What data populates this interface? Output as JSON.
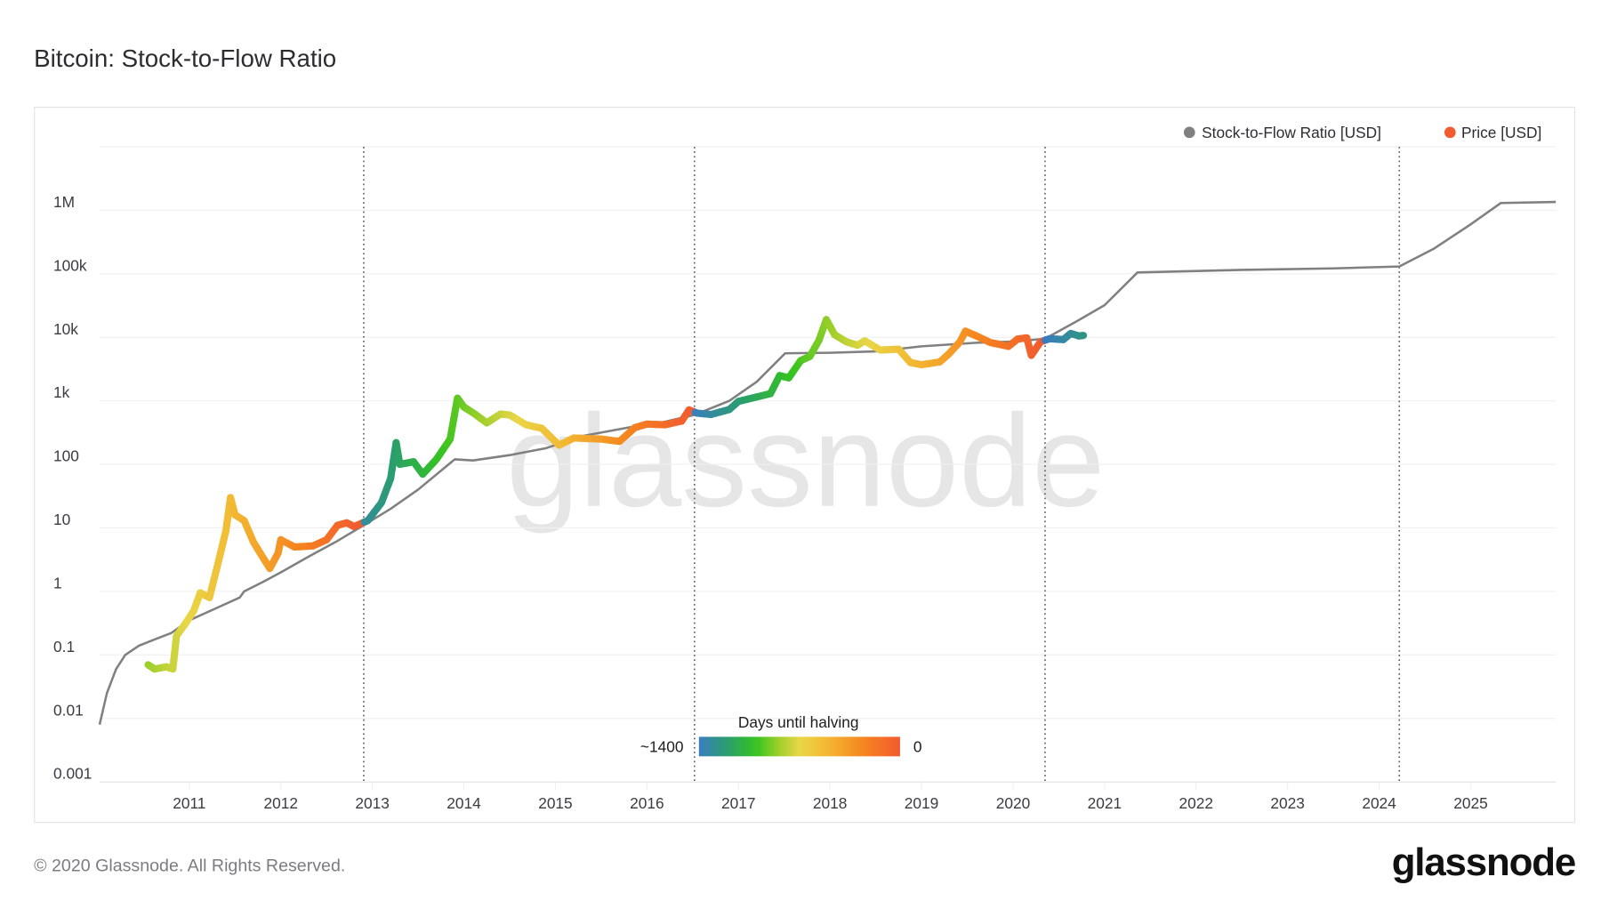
{
  "title": "Bitcoin: Stock-to-Flow Ratio",
  "footer": {
    "copyright": "© 2020 Glassnode. All Rights Reserved.",
    "logo": "glassnode"
  },
  "watermark": "glassnode",
  "colorbar": {
    "title": "Days until halving",
    "min_label": "~1400",
    "max_label": "0",
    "stops": [
      [
        0,
        "#f25a30"
      ],
      [
        250,
        "#f5841f"
      ],
      [
        500,
        "#f3b632"
      ],
      [
        700,
        "#e9d647"
      ],
      [
        850,
        "#9bcf2a"
      ],
      [
        1000,
        "#35c41e"
      ],
      [
        1200,
        "#2a9e6e"
      ],
      [
        1400,
        "#3a7dbf"
      ]
    ]
  },
  "chart_data": {
    "type": "line",
    "title": "Bitcoin: Stock-to-Flow Ratio",
    "xlabel": "",
    "ylabel": "",
    "yscale": "log",
    "ylim": [
      0.001,
      10000000
    ],
    "xlim": [
      2010.02,
      2025.93
    ],
    "grid": true,
    "legend_position": "top-right",
    "y_ticks": [
      {
        "v": 1000000,
        "label": "1M"
      },
      {
        "v": 100000,
        "label": "100k"
      },
      {
        "v": 10000,
        "label": "10k"
      },
      {
        "v": 1000,
        "label": "1k"
      },
      {
        "v": 100,
        "label": "100"
      },
      {
        "v": 10,
        "label": "10"
      },
      {
        "v": 1,
        "label": "1"
      },
      {
        "v": 0.1,
        "label": "0.1"
      },
      {
        "v": 0.01,
        "label": "0.01"
      },
      {
        "v": 0.001,
        "label": "0.001"
      }
    ],
    "x_ticks": [
      "2011",
      "2012",
      "2013",
      "2014",
      "2015",
      "2016",
      "2017",
      "2018",
      "2019",
      "2020",
      "2021",
      "2022",
      "2023",
      "2024",
      "2025"
    ],
    "halvings": [
      2012.906,
      2016.52,
      2020.35,
      2024.22
    ],
    "series": [
      {
        "name": "Stock-to-Flow Ratio [USD]",
        "color": "#808080",
        "points": [
          [
            2010.02,
            0.008
          ],
          [
            2010.1,
            0.025
          ],
          [
            2010.2,
            0.06
          ],
          [
            2010.3,
            0.1
          ],
          [
            2010.45,
            0.14
          ],
          [
            2010.6,
            0.17
          ],
          [
            2010.8,
            0.22
          ],
          [
            2011.0,
            0.35
          ],
          [
            2011.3,
            0.55
          ],
          [
            2011.55,
            0.8
          ],
          [
            2011.6,
            1.0
          ],
          [
            2011.8,
            1.4
          ],
          [
            2012.0,
            2
          ],
          [
            2012.3,
            3.5
          ],
          [
            2012.6,
            6
          ],
          [
            2012.906,
            11
          ],
          [
            2013.2,
            20
          ],
          [
            2013.5,
            40
          ],
          [
            2013.9,
            120
          ],
          [
            2014.1,
            115
          ],
          [
            2014.5,
            140
          ],
          [
            2014.9,
            180
          ],
          [
            2015.3,
            280
          ],
          [
            2015.8,
            380
          ],
          [
            2016.2,
            470
          ],
          [
            2016.52,
            600
          ],
          [
            2016.9,
            1000
          ],
          [
            2017.2,
            2000
          ],
          [
            2017.51,
            5600
          ],
          [
            2018.0,
            5700
          ],
          [
            2018.5,
            6000
          ],
          [
            2019.0,
            7200
          ],
          [
            2019.6,
            8200
          ],
          [
            2020.0,
            8600
          ],
          [
            2020.35,
            9500
          ],
          [
            2020.7,
            18000
          ],
          [
            2021.0,
            32000
          ],
          [
            2021.36,
            105000
          ],
          [
            2022.5,
            115000
          ],
          [
            2023.5,
            122000
          ],
          [
            2024.22,
            130000
          ],
          [
            2024.6,
            250000
          ],
          [
            2025.0,
            600000
          ],
          [
            2025.33,
            1300000
          ],
          [
            2025.93,
            1350000
          ]
        ]
      },
      {
        "name": "Price [USD]",
        "color": "#f25a30",
        "points": [
          [
            2010.55,
            0.07
          ],
          [
            2010.62,
            0.06
          ],
          [
            2010.75,
            0.065
          ],
          [
            2010.82,
            0.06
          ],
          [
            2010.86,
            0.2
          ],
          [
            2010.95,
            0.3
          ],
          [
            2011.05,
            0.5
          ],
          [
            2011.12,
            0.95
          ],
          [
            2011.22,
            0.8
          ],
          [
            2011.32,
            3
          ],
          [
            2011.4,
            9
          ],
          [
            2011.45,
            30
          ],
          [
            2011.5,
            16
          ],
          [
            2011.6,
            13
          ],
          [
            2011.7,
            6
          ],
          [
            2011.8,
            3.5
          ],
          [
            2011.88,
            2.3
          ],
          [
            2011.97,
            4
          ],
          [
            2012.0,
            6.5
          ],
          [
            2012.15,
            5
          ],
          [
            2012.35,
            5.2
          ],
          [
            2012.5,
            6.5
          ],
          [
            2012.62,
            11
          ],
          [
            2012.72,
            12
          ],
          [
            2012.8,
            10.5
          ],
          [
            2012.95,
            13
          ],
          [
            2013.1,
            25
          ],
          [
            2013.2,
            60
          ],
          [
            2013.26,
            220
          ],
          [
            2013.3,
            100
          ],
          [
            2013.45,
            110
          ],
          [
            2013.55,
            70
          ],
          [
            2013.7,
            120
          ],
          [
            2013.85,
            250
          ],
          [
            2013.93,
            1100
          ],
          [
            2014.0,
            800
          ],
          [
            2014.12,
            620
          ],
          [
            2014.25,
            450
          ],
          [
            2014.4,
            620
          ],
          [
            2014.5,
            600
          ],
          [
            2014.68,
            420
          ],
          [
            2014.85,
            370
          ],
          [
            2015.04,
            200
          ],
          [
            2015.2,
            260
          ],
          [
            2015.5,
            250
          ],
          [
            2015.7,
            230
          ],
          [
            2015.87,
            380
          ],
          [
            2016.0,
            430
          ],
          [
            2016.2,
            420
          ],
          [
            2016.38,
            480
          ],
          [
            2016.46,
            720
          ],
          [
            2016.55,
            640
          ],
          [
            2016.7,
            610
          ],
          [
            2016.9,
            730
          ],
          [
            2017.0,
            980
          ],
          [
            2017.2,
            1150
          ],
          [
            2017.35,
            1300
          ],
          [
            2017.45,
            2500
          ],
          [
            2017.55,
            2300
          ],
          [
            2017.68,
            4300
          ],
          [
            2017.78,
            5000
          ],
          [
            2017.88,
            9000
          ],
          [
            2017.96,
            19000
          ],
          [
            2018.05,
            11000
          ],
          [
            2018.18,
            8500
          ],
          [
            2018.3,
            7500
          ],
          [
            2018.38,
            8800
          ],
          [
            2018.55,
            6300
          ],
          [
            2018.75,
            6500
          ],
          [
            2018.88,
            4000
          ],
          [
            2019.0,
            3700
          ],
          [
            2019.2,
            4100
          ],
          [
            2019.3,
            5500
          ],
          [
            2019.42,
            8500
          ],
          [
            2019.48,
            12500
          ],
          [
            2019.6,
            10500
          ],
          [
            2019.75,
            8300
          ],
          [
            2019.95,
            7200
          ],
          [
            2020.05,
            9400
          ],
          [
            2020.15,
            9800
          ],
          [
            2020.2,
            5200
          ],
          [
            2020.3,
            8500
          ],
          [
            2020.4,
            9500
          ],
          [
            2020.55,
            9200
          ],
          [
            2020.63,
            11500
          ],
          [
            2020.72,
            10500
          ],
          [
            2020.77,
            10700
          ]
        ]
      }
    ]
  }
}
